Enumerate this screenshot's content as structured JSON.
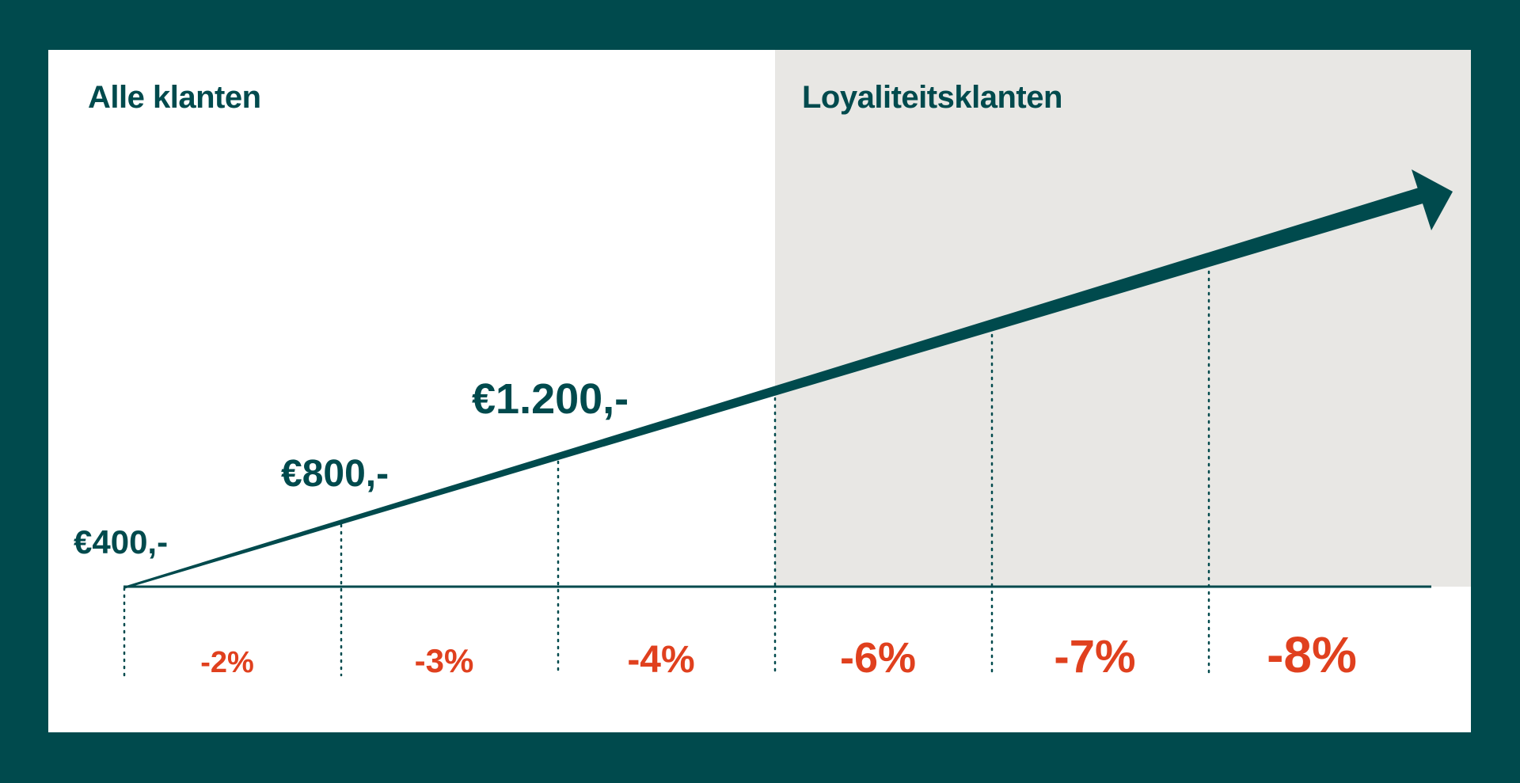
{
  "titles": {
    "all_customers": "Alle klanten",
    "loyalty_customers": "Loyaliteitsklanten"
  },
  "prices": [
    "€400,-",
    "€800,-",
    "€1.200,-"
  ],
  "discounts": [
    "-2%",
    "-3%",
    "-4%",
    "-6%",
    "-7%",
    "-8%"
  ],
  "colors": {
    "frame": "#004a4d",
    "primary": "#004a4d",
    "accent": "#e0401e",
    "loyalty_background": "#e8e7e4",
    "panel": "#ffffff"
  }
}
